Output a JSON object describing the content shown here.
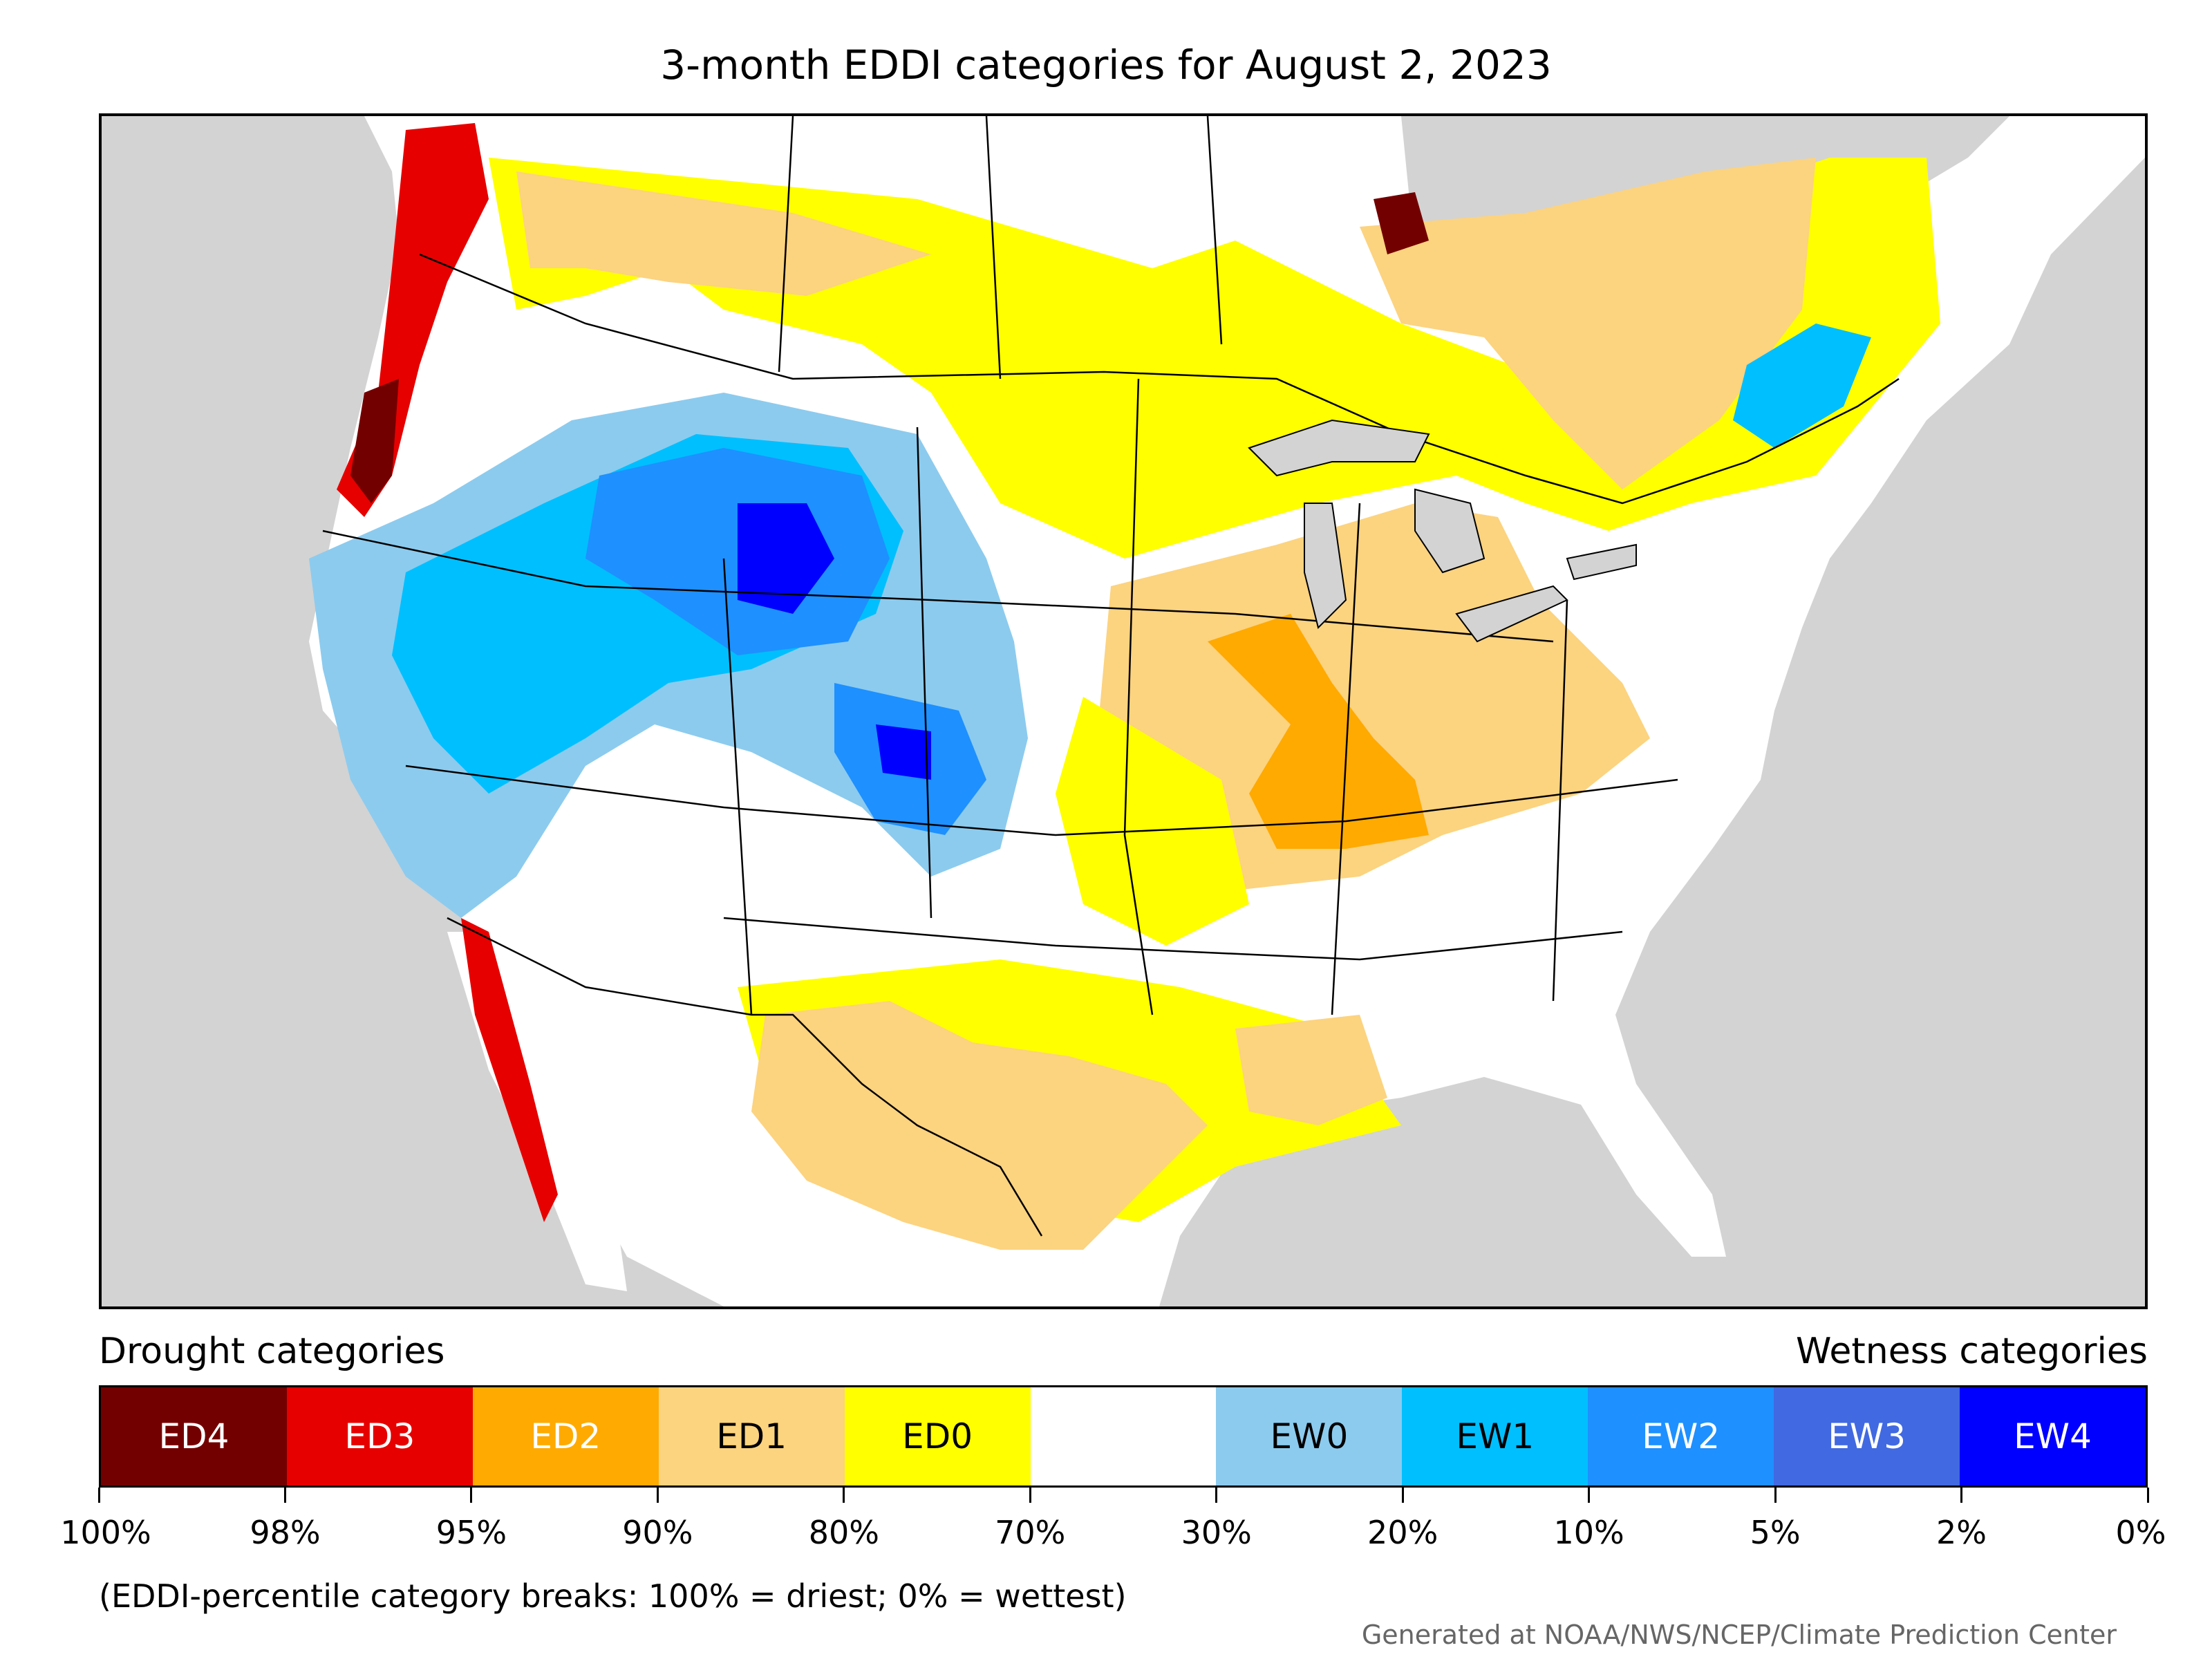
{
  "title": "3-month EDDI categories for August 2, 2023",
  "legend": {
    "drought_heading": "Drought categories",
    "wetness_heading": "Wetness categories",
    "categories": [
      {
        "label": "ED4",
        "color": "#730000",
        "text_color": "#ffffff"
      },
      {
        "label": "ED3",
        "color": "#e60000",
        "text_color": "#ffffff"
      },
      {
        "label": "ED2",
        "color": "#ffaa00",
        "text_color": "#ffffff"
      },
      {
        "label": "ED1",
        "color": "#fcd37f",
        "text_color": "#000000"
      },
      {
        "label": "ED0",
        "color": "#ffff00",
        "text_color": "#000000"
      },
      {
        "label": "",
        "color": "#ffffff",
        "text_color": "#000000"
      },
      {
        "label": "EW0",
        "color": "#8ccbee",
        "text_color": "#000000"
      },
      {
        "label": "EW1",
        "color": "#00bfff",
        "text_color": "#000000"
      },
      {
        "label": "EW2",
        "color": "#1e90ff",
        "text_color": "#ffffff"
      },
      {
        "label": "EW3",
        "color": "#4169e1",
        "text_color": "#ffffff"
      },
      {
        "label": "EW4",
        "color": "#0000ff",
        "text_color": "#ffffff"
      }
    ],
    "ticks": [
      "100%",
      "98%",
      "95%",
      "90%",
      "80%",
      "70%",
      "30%",
      "20%",
      "10%",
      "5%",
      "2%",
      "0%"
    ],
    "note": "(EDDI-percentile category breaks: 100% = driest; 0% = wettest)"
  },
  "credit": "Generated at NOAA/NWS/NCEP/Climate Prediction Center",
  "map": {
    "ocean_color": "#d3d3d3",
    "land_color": "#ffffff",
    "border_color": "#000000"
  }
}
